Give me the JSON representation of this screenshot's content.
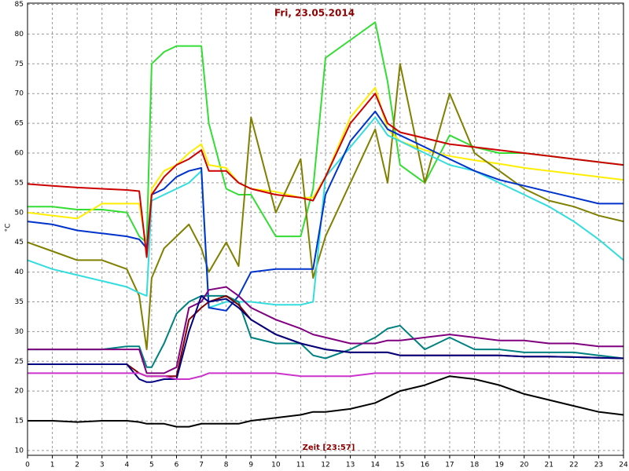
{
  "chart_data": {
    "type": "line",
    "title": "Fri, 23.05.2014",
    "x_label": "Zeit [23:57]",
    "y_label": "°C",
    "xlim": [
      0,
      24
    ],
    "ylim": [
      9.2,
      85.2
    ],
    "xticks": [
      0,
      1,
      2,
      3,
      4,
      5,
      6,
      7,
      8,
      9,
      10,
      11,
      12,
      13,
      14,
      15,
      16,
      17,
      18,
      19,
      20,
      21,
      22,
      23,
      24
    ],
    "yticks": [
      10,
      15,
      20,
      25,
      30,
      35,
      40,
      45,
      50,
      55,
      60,
      65,
      70,
      75,
      80,
      85
    ],
    "grid": true,
    "x": [
      0,
      1,
      2,
      3,
      4,
      4.5,
      4.8,
      5,
      5.5,
      6,
      6.5,
      7,
      7.3,
      8,
      8.5,
      9,
      10,
      11,
      11.5,
      12,
      13,
      14,
      14.5,
      15,
      16,
      17,
      18,
      19,
      20,
      21,
      22,
      23,
      24
    ],
    "series": [
      {
        "color": "#33dd33",
        "values": [
          51,
          51,
          50.5,
          50.5,
          50,
          46,
          45,
          75,
          77,
          78,
          78,
          78,
          65,
          54,
          53,
          53,
          46,
          46,
          54,
          76,
          79,
          82,
          72,
          58,
          55,
          63,
          61,
          60,
          60,
          59.5,
          59,
          58.5,
          58
        ]
      },
      {
        "color": "#ffee00",
        "values": [
          50,
          49.5,
          49,
          51.5,
          51.5,
          51.5,
          44,
          54,
          57,
          58,
          60,
          61.5,
          58,
          57.5,
          55,
          54,
          53.5,
          52.5,
          52.5,
          56,
          66,
          71,
          64,
          62,
          60.5,
          59.5,
          58.8,
          58.2,
          57.5,
          57,
          56.5,
          56,
          55.5
        ]
      },
      {
        "color": "#808000",
        "values": [
          45,
          43.5,
          42,
          42,
          40.5,
          36,
          27,
          39,
          44,
          46,
          48,
          44,
          40,
          45,
          41,
          66,
          50,
          59,
          39,
          46,
          55,
          64,
          55,
          75,
          55,
          70,
          60,
          57,
          54,
          52,
          51,
          49.5,
          48.5
        ]
      },
      {
        "color": "#33dddd",
        "values": [
          42,
          40.5,
          39.5,
          38.5,
          37.5,
          36.5,
          36,
          52,
          53,
          54,
          55,
          57,
          34,
          35,
          35,
          35,
          34.5,
          34.5,
          35,
          56,
          61,
          66,
          63,
          62,
          60,
          58,
          57,
          55,
          53,
          51,
          48.5,
          45.5,
          42
        ]
      },
      {
        "color": "#0033cc",
        "values": [
          48.5,
          48,
          47,
          46.5,
          46,
          45.5,
          44,
          53,
          54,
          56,
          57,
          57.5,
          34,
          33.5,
          36,
          40,
          40.5,
          40.5,
          40.5,
          53,
          62,
          67,
          64,
          63,
          61,
          59,
          57,
          55.5,
          54.5,
          53.5,
          52.5,
          51.5,
          51.5
        ]
      },
      {
        "color": "#cc0000",
        "values": [
          54.8,
          54.5,
          54.2,
          54,
          53.8,
          53.6,
          42.5,
          53,
          56,
          58,
          59,
          60.5,
          57,
          57,
          55,
          54,
          53,
          52.5,
          52,
          56,
          65,
          70,
          65,
          63.5,
          62.5,
          61.5,
          61,
          60.5,
          60,
          59.5,
          59,
          58.5,
          58
        ]
      },
      {
        "color": "#008080",
        "values": [
          27,
          27,
          27,
          27,
          27.5,
          27.5,
          24,
          24,
          28,
          33,
          35,
          36,
          36,
          36,
          35,
          29,
          28,
          28,
          26,
          25.5,
          27,
          29,
          30.5,
          31,
          27,
          29,
          27,
          27,
          26.5,
          26.5,
          26.5,
          26,
          25.5
        ]
      },
      {
        "color": "#800080",
        "values": [
          27,
          27,
          27,
          27,
          27,
          27,
          23,
          23,
          23,
          24,
          34,
          35,
          37,
          37.5,
          36,
          34,
          32,
          30.5,
          29.5,
          29,
          28,
          28,
          28.5,
          28.5,
          29,
          29.5,
          29,
          28.5,
          28.5,
          28,
          28,
          27.5,
          27.5
        ]
      },
      {
        "color": "#800000",
        "values": [
          24.5,
          24.5,
          24.5,
          24.5,
          24.5,
          23,
          22.5,
          22.5,
          22.5,
          22.5,
          32,
          34,
          35,
          36,
          34.5,
          32,
          29.5,
          28,
          27.5,
          27,
          26.5,
          26.5,
          26.5,
          26,
          26,
          26,
          26,
          26,
          25.8,
          25.8,
          25.7,
          25.6,
          25.5
        ]
      },
      {
        "color": "#000080",
        "values": [
          24.5,
          24.5,
          24.5,
          24.5,
          24.5,
          22,
          21.5,
          21.5,
          22,
          22,
          30,
          36,
          35,
          35.5,
          34,
          32,
          29.5,
          28,
          27.5,
          27,
          26.5,
          26.5,
          26.5,
          26,
          26,
          26,
          26,
          26,
          25.8,
          25.8,
          25.7,
          25.6,
          25.5
        ]
      },
      {
        "color": "#cc33cc",
        "values": [
          23,
          23,
          23,
          23,
          23,
          23,
          22.5,
          22.5,
          22.5,
          22,
          22,
          22.5,
          23,
          23,
          23,
          23,
          23,
          22.5,
          22.5,
          22.5,
          22.5,
          23,
          23,
          23,
          23,
          23,
          23,
          23,
          23,
          23,
          23,
          23,
          23
        ]
      },
      {
        "color": "#000000",
        "values": [
          15,
          15,
          14.8,
          15,
          15,
          14.8,
          14.5,
          14.5,
          14.5,
          14,
          14,
          14.5,
          14.5,
          14.5,
          14.5,
          15,
          15.5,
          16,
          16.5,
          16.5,
          17,
          18,
          19,
          20,
          21,
          22.5,
          22,
          21,
          19.5,
          18.5,
          17.5,
          16.5,
          16
        ]
      }
    ]
  }
}
